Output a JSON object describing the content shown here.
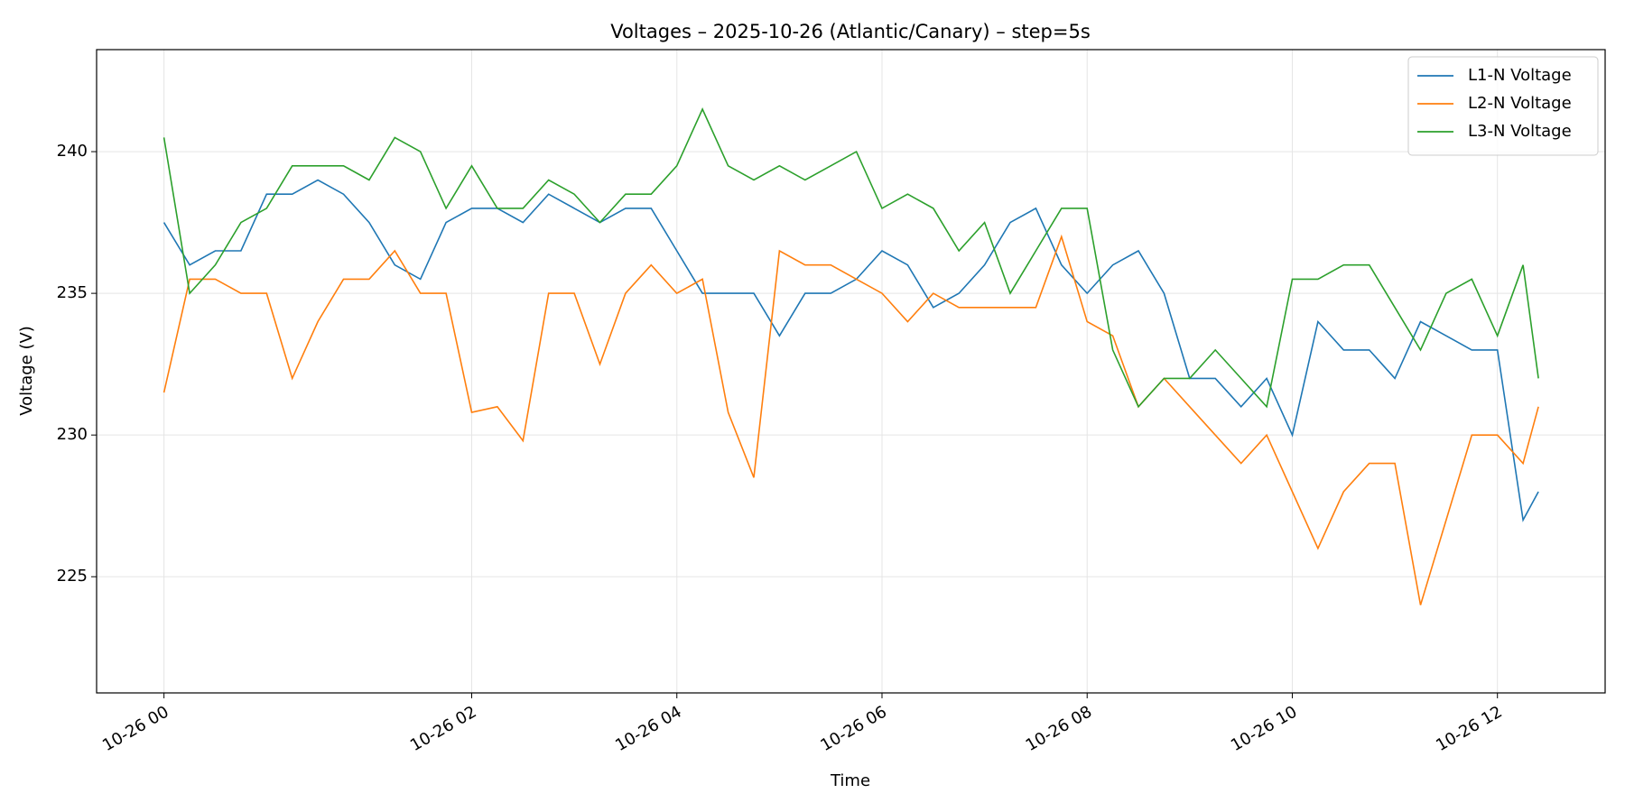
{
  "chart_data": {
    "type": "line",
    "title": "Voltages – 2025-10-26 (Atlantic/Canary) – step=5s",
    "x_label": "Time",
    "y_label": "Voltage (V)",
    "x": [
      0,
      0.25,
      0.5,
      0.75,
      1,
      1.25,
      1.5,
      1.75,
      2,
      2.25,
      2.5,
      2.75,
      3,
      3.25,
      3.5,
      3.75,
      4,
      4.25,
      4.5,
      4.75,
      5,
      5.25,
      5.5,
      5.75,
      6,
      6.25,
      6.5,
      6.75,
      7,
      7.25,
      7.5,
      7.75,
      8,
      8.25,
      8.5,
      8.75,
      9,
      9.25,
      9.5,
      9.75,
      10,
      10.25,
      10.5,
      10.75,
      11,
      11.25,
      11.5,
      11.75,
      12,
      12.25,
      12.5,
      12.75,
      13,
      13.25,
      13.4
    ],
    "series": [
      {
        "name": "L1-N Voltage",
        "color": "#1f77b4",
        "values": [
          237.5,
          236,
          236.5,
          236.5,
          238.5,
          238.5,
          239,
          238.5,
          237.5,
          236,
          235.5,
          237.5,
          238,
          238,
          237.5,
          238.5,
          238,
          237.5,
          238,
          238,
          236.5,
          235,
          235,
          235,
          233.5,
          235,
          235,
          235.5,
          236.5,
          236,
          234.5,
          235,
          236,
          237.5,
          238,
          236,
          235,
          236,
          236.5,
          235,
          232,
          232,
          231,
          232,
          230,
          234,
          233,
          233,
          232,
          234,
          233.5,
          233,
          233,
          227,
          228
        ]
      },
      {
        "name": "L2-N Voltage",
        "color": "#ff7f0e",
        "values": [
          231.5,
          235.5,
          235.5,
          235,
          235,
          232,
          234,
          235.5,
          235.5,
          236.5,
          235,
          235,
          230.8,
          231,
          229.8,
          235,
          235,
          232.5,
          235,
          236,
          235,
          235.5,
          230.8,
          228.5,
          236.5,
          236,
          236,
          235.5,
          235,
          234,
          235,
          234.5,
          234.5,
          234.5,
          234.5,
          237,
          234,
          233.5,
          231,
          232,
          231,
          230,
          229,
          230,
          228,
          226,
          228,
          229,
          229,
          224,
          227,
          230,
          230,
          229,
          231
        ]
      },
      {
        "name": "L3-N Voltage",
        "color": "#2ca02c",
        "values": [
          240.5,
          235,
          236,
          237.5,
          238,
          239.5,
          239.5,
          239.5,
          239,
          240.5,
          240,
          238,
          239.5,
          238,
          238,
          239,
          238.5,
          237.5,
          238.5,
          238.5,
          239.5,
          241.5,
          239.5,
          239,
          239.5,
          239,
          239.5,
          240,
          238,
          238.5,
          238,
          236.5,
          237.5,
          235,
          236.5,
          238,
          238,
          233,
          231,
          232,
          232,
          233,
          232,
          231,
          235.5,
          235.5,
          236,
          236,
          234.5,
          233,
          235,
          235.5,
          233.5,
          236,
          232
        ]
      }
    ],
    "xlim": [
      -0.657,
      14.05
    ],
    "xticks": [
      {
        "value": 0,
        "label": "10-26 00"
      },
      {
        "value": 3,
        "label": "10-26 02"
      },
      {
        "value": 5,
        "label": "10-26 04"
      },
      {
        "value": 7,
        "label": "10-26 06"
      },
      {
        "value": 9,
        "label": "10-26 08"
      },
      {
        "value": 11,
        "label": "10-26 10"
      },
      {
        "value": 13,
        "label": "10-26 12"
      }
    ],
    "ylim": [
      220.9,
      243.6
    ],
    "yticks": [
      225,
      230,
      235,
      240
    ],
    "grid": true,
    "legend": "upper right"
  }
}
